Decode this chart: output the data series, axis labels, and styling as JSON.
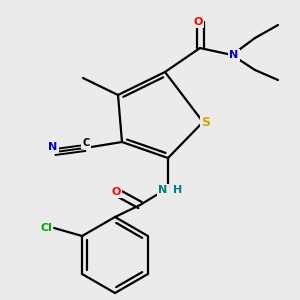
{
  "bg_color": "#ebebeb",
  "line_color": "#000000",
  "bond_width": 1.6,
  "figsize": [
    3.0,
    3.0
  ],
  "dpi": 100,
  "font_size": 8,
  "colors": {
    "S": "#ccaa00",
    "N": "#0000cc",
    "O": "#ff0000",
    "Cl": "#00aa00",
    "NH_N": "#008080",
    "NH_H": "#008080",
    "C": "#000000"
  }
}
